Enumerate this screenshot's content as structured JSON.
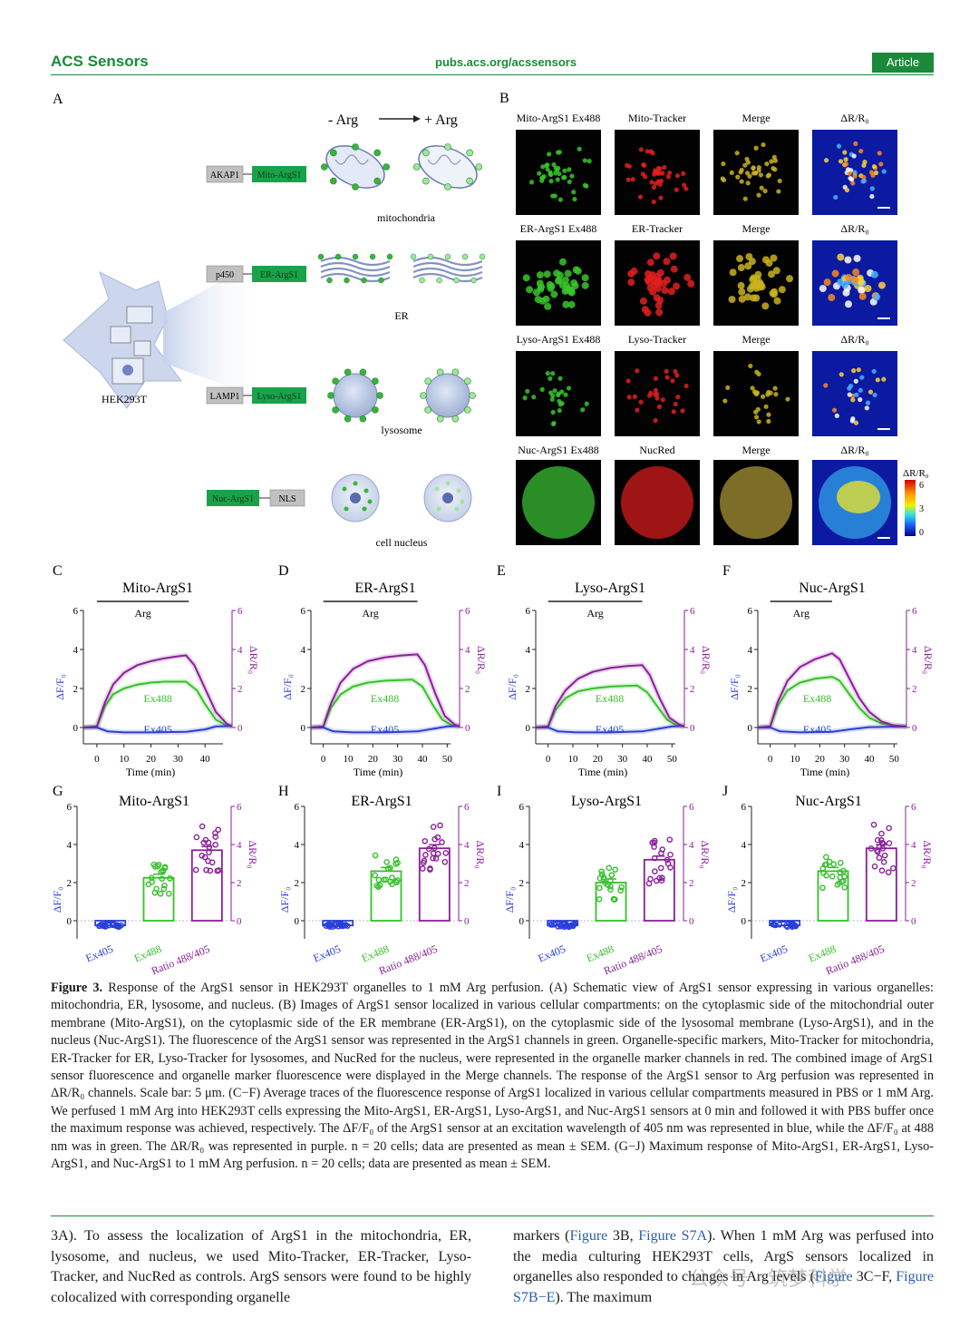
{
  "header": {
    "journal": "ACS Sensors",
    "url": "pubs.acs.org/acssensors",
    "badge": "Article"
  },
  "panel_a": {
    "label": "A",
    "minus_arg": "- Arg",
    "plus_arg": "+ Arg",
    "cell_label": "HEK293T",
    "constructs": [
      {
        "anchor": "AKAP1",
        "sensor": "Mito-ArgS1",
        "organelle": "mitochondria"
      },
      {
        "anchor": "p450",
        "sensor": "ER-ArgS1",
        "organelle": "ER"
      },
      {
        "anchor": "LAMP1",
        "sensor": "Lyso-ArgS1",
        "organelle": "lysosome"
      },
      {
        "anchor": "NLS",
        "sensor": "Nuc-ArgS1",
        "organelle": "cell nucleus"
      }
    ]
  },
  "panel_b": {
    "label": "B",
    "rows": [
      [
        "Mito-ArgS1 Ex488",
        "Mito-Tracker",
        "Merge",
        "ΔR/R₀"
      ],
      [
        "ER-ArgS1 Ex488",
        "ER-Tracker",
        "Merge",
        "ΔR/R₀"
      ],
      [
        "Lyso-ArgS1 Ex488",
        "Lyso-Tracker",
        "Merge",
        "ΔR/R₀"
      ],
      [
        "Nuc-ArgS1 Ex488",
        "NucRed",
        "Merge",
        "ΔR/R₀"
      ]
    ],
    "colorbar": {
      "title": "ΔR/R₀",
      "ticks": [
        "6",
        "3",
        "0"
      ]
    },
    "colors": {
      "green": "#39c42a",
      "red": "#e02020",
      "merge": "#c9b21e"
    }
  },
  "chart_data": [
    {
      "panel": "C",
      "type": "line",
      "title": "Mito-ArgS1",
      "bar_label": "Arg",
      "xlabel": "Time (min)",
      "ylabel_left": "ΔF/F₀",
      "ylabel_right": "ΔR/R₀",
      "x_ticks": [
        0,
        10,
        20,
        30,
        40
      ],
      "xlim": [
        -5,
        50
      ],
      "ylim": [
        0,
        6
      ],
      "y_ticks": [
        0,
        2,
        4,
        6
      ],
      "arg_interval": [
        0,
        34
      ],
      "series": [
        {
          "name": "Ex488",
          "color": "#35c02a",
          "points": [
            [
              -5,
              0
            ],
            [
              0,
              0.05
            ],
            [
              3,
              1.1
            ],
            [
              6,
              1.7
            ],
            [
              10,
              2.0
            ],
            [
              15,
              2.2
            ],
            [
              20,
              2.3
            ],
            [
              25,
              2.35
            ],
            [
              33,
              2.35
            ],
            [
              37,
              1.9
            ],
            [
              40,
              1.2
            ],
            [
              44,
              0.4
            ],
            [
              48,
              0.1
            ],
            [
              50,
              0.05
            ]
          ]
        },
        {
          "name": "Ex405",
          "color": "#2a3fd8",
          "points": [
            [
              -5,
              0
            ],
            [
              0,
              0
            ],
            [
              4,
              -0.2
            ],
            [
              10,
              -0.25
            ],
            [
              20,
              -0.25
            ],
            [
              33,
              -0.22
            ],
            [
              40,
              -0.1
            ],
            [
              44,
              0.05
            ],
            [
              50,
              0.08
            ]
          ]
        },
        {
          "name": "",
          "color": "#8a1f9a",
          "points": [
            [
              -5,
              0
            ],
            [
              0,
              0.05
            ],
            [
              3,
              1.3
            ],
            [
              6,
              2.2
            ],
            [
              10,
              2.8
            ],
            [
              15,
              3.2
            ],
            [
              20,
              3.4
            ],
            [
              25,
              3.55
            ],
            [
              30,
              3.65
            ],
            [
              33,
              3.7
            ],
            [
              36,
              3.2
            ],
            [
              40,
              2.0
            ],
            [
              44,
              0.8
            ],
            [
              48,
              0.2
            ],
            [
              50,
              0.05
            ]
          ]
        }
      ]
    },
    {
      "panel": "D",
      "type": "line",
      "title": "ER-ArgS1",
      "bar_label": "Arg",
      "xlabel": "Time (min)",
      "ylabel_left": "ΔF/F₀",
      "ylabel_right": "ΔR/R₀",
      "x_ticks": [
        0,
        10,
        20,
        30,
        40,
        50
      ],
      "xlim": [
        -5,
        55
      ],
      "ylim": [
        0,
        6
      ],
      "y_ticks": [
        0,
        2,
        4,
        6
      ],
      "arg_interval": [
        0,
        38
      ],
      "series": [
        {
          "name": "Ex488",
          "color": "#35c02a",
          "points": [
            [
              -5,
              0
            ],
            [
              0,
              0.05
            ],
            [
              3,
              1.0
            ],
            [
              7,
              1.7
            ],
            [
              12,
              2.1
            ],
            [
              18,
              2.3
            ],
            [
              25,
              2.4
            ],
            [
              36,
              2.45
            ],
            [
              40,
              2.1
            ],
            [
              44,
              1.2
            ],
            [
              48,
              0.4
            ],
            [
              52,
              0.1
            ],
            [
              55,
              0.05
            ]
          ]
        },
        {
          "name": "Ex405",
          "color": "#2a3fd8",
          "points": [
            [
              -5,
              0
            ],
            [
              0,
              0
            ],
            [
              4,
              -0.2
            ],
            [
              12,
              -0.25
            ],
            [
              25,
              -0.25
            ],
            [
              38,
              -0.2
            ],
            [
              45,
              -0.05
            ],
            [
              50,
              0.05
            ],
            [
              55,
              0.08
            ]
          ]
        },
        {
          "name": "",
          "color": "#8a1f9a",
          "points": [
            [
              -5,
              0
            ],
            [
              0,
              0.05
            ],
            [
              3,
              1.2
            ],
            [
              7,
              2.3
            ],
            [
              12,
              3.0
            ],
            [
              18,
              3.4
            ],
            [
              25,
              3.6
            ],
            [
              32,
              3.7
            ],
            [
              38,
              3.75
            ],
            [
              41,
              3.2
            ],
            [
              45,
              1.8
            ],
            [
              49,
              0.6
            ],
            [
              53,
              0.15
            ],
            [
              55,
              0.05
            ]
          ]
        }
      ]
    },
    {
      "panel": "E",
      "type": "line",
      "title": "Lyso-ArgS1",
      "bar_label": "Arg",
      "xlabel": "Time (min)",
      "ylabel_left": "ΔF/F₀",
      "ylabel_right": "ΔR/R₀",
      "x_ticks": [
        0,
        10,
        20,
        30,
        40,
        50
      ],
      "xlim": [
        -5,
        55
      ],
      "ylim": [
        0,
        6
      ],
      "y_ticks": [
        0,
        2,
        4,
        6
      ],
      "arg_interval": [
        0,
        38
      ],
      "series": [
        {
          "name": "Ex488",
          "color": "#35c02a",
          "points": [
            [
              -5,
              0
            ],
            [
              0,
              0.05
            ],
            [
              3,
              0.9
            ],
            [
              7,
              1.5
            ],
            [
              12,
              1.85
            ],
            [
              18,
              2.0
            ],
            [
              25,
              2.1
            ],
            [
              36,
              2.15
            ],
            [
              40,
              1.8
            ],
            [
              44,
              1.1
            ],
            [
              48,
              0.4
            ],
            [
              52,
              0.1
            ],
            [
              55,
              0.05
            ]
          ]
        },
        {
          "name": "Ex405",
          "color": "#2a3fd8",
          "points": [
            [
              -5,
              0
            ],
            [
              0,
              0
            ],
            [
              4,
              -0.2
            ],
            [
              12,
              -0.25
            ],
            [
              25,
              -0.25
            ],
            [
              38,
              -0.2
            ],
            [
              45,
              -0.05
            ],
            [
              50,
              0.05
            ],
            [
              55,
              0.08
            ]
          ]
        },
        {
          "name": "",
          "color": "#8a1f9a",
          "points": [
            [
              -5,
              0
            ],
            [
              0,
              0.05
            ],
            [
              3,
              1.1
            ],
            [
              7,
              1.9
            ],
            [
              12,
              2.5
            ],
            [
              18,
              2.85
            ],
            [
              25,
              3.05
            ],
            [
              32,
              3.15
            ],
            [
              38,
              3.2
            ],
            [
              41,
              2.7
            ],
            [
              45,
              1.5
            ],
            [
              49,
              0.5
            ],
            [
              53,
              0.15
            ],
            [
              55,
              0.05
            ]
          ]
        }
      ]
    },
    {
      "panel": "F",
      "type": "line",
      "title": "Nuc-ArgS1",
      "bar_label": "Arg",
      "xlabel": "Time (min)",
      "ylabel_left": "ΔF/F₀",
      "ylabel_right": "ΔR/R₀",
      "x_ticks": [
        0,
        10,
        20,
        30,
        40,
        50
      ],
      "xlim": [
        -5,
        55
      ],
      "ylim": [
        0,
        6
      ],
      "y_ticks": [
        0,
        2,
        4,
        6
      ],
      "arg_interval": [
        0,
        25
      ],
      "series": [
        {
          "name": "Ex488",
          "color": "#35c02a",
          "points": [
            [
              -5,
              0
            ],
            [
              0,
              0.05
            ],
            [
              3,
              1.1
            ],
            [
              7,
              1.9
            ],
            [
              12,
              2.3
            ],
            [
              18,
              2.5
            ],
            [
              25,
              2.6
            ],
            [
              28,
              2.4
            ],
            [
              32,
              1.7
            ],
            [
              36,
              1.0
            ],
            [
              40,
              0.5
            ],
            [
              45,
              0.2
            ],
            [
              50,
              0.1
            ],
            [
              55,
              0.05
            ]
          ]
        },
        {
          "name": "Ex405",
          "color": "#2a3fd8",
          "points": [
            [
              -5,
              0
            ],
            [
              0,
              0
            ],
            [
              4,
              -0.2
            ],
            [
              12,
              -0.25
            ],
            [
              25,
              -0.22
            ],
            [
              32,
              -0.1
            ],
            [
              40,
              0.02
            ],
            [
              55,
              0.05
            ]
          ]
        },
        {
          "name": "",
          "color": "#8a1f9a",
          "points": [
            [
              -5,
              0
            ],
            [
              0,
              0.05
            ],
            [
              3,
              1.3
            ],
            [
              7,
              2.4
            ],
            [
              12,
              3.1
            ],
            [
              18,
              3.5
            ],
            [
              25,
              3.8
            ],
            [
              28,
              3.5
            ],
            [
              32,
              2.5
            ],
            [
              36,
              1.5
            ],
            [
              40,
              0.8
            ],
            [
              45,
              0.3
            ],
            [
              50,
              0.1
            ],
            [
              55,
              0.05
            ]
          ]
        }
      ]
    },
    {
      "panel": "G",
      "type": "bar",
      "title": "Mito-ArgS1",
      "categories": [
        "Ex405",
        "Ex488",
        "Ratio 488/405"
      ],
      "values": [
        -0.25,
        2.25,
        3.7
      ],
      "ylim": [
        0,
        6
      ],
      "y_ticks": [
        0,
        2,
        4,
        6
      ],
      "ylabel_left": "ΔF/F₀",
      "ylabel_right": "ΔR/R₀",
      "colors": [
        "#2a3fd8",
        "#35c02a",
        "#8a1f9a"
      ]
    },
    {
      "panel": "H",
      "type": "bar",
      "title": "ER-ArgS1",
      "categories": [
        "Ex405",
        "Ex488",
        "Ratio 488/405"
      ],
      "values": [
        -0.25,
        2.6,
        3.8
      ],
      "ylim": [
        0,
        6
      ],
      "y_ticks": [
        0,
        2,
        4,
        6
      ],
      "ylabel_left": "ΔF/F₀",
      "ylabel_right": "ΔR/R₀",
      "colors": [
        "#2a3fd8",
        "#35c02a",
        "#8a1f9a"
      ]
    },
    {
      "panel": "I",
      "type": "bar",
      "title": "Lyso-ArgS1",
      "categories": [
        "Ex405",
        "Ex488",
        "Ratio 488/405"
      ],
      "values": [
        -0.25,
        2.0,
        3.2
      ],
      "ylim": [
        0,
        6
      ],
      "y_ticks": [
        0,
        2,
        4,
        6
      ],
      "ylabel_left": "ΔF/F₀",
      "ylabel_right": "ΔR/R₀",
      "colors": [
        "#2a3fd8",
        "#35c02a",
        "#8a1f9a"
      ]
    },
    {
      "panel": "J",
      "type": "bar",
      "title": "Nuc-ArgS1",
      "categories": [
        "Ex405",
        "Ex488",
        "Ratio 488/405"
      ],
      "values": [
        -0.25,
        2.6,
        3.8
      ],
      "ylim": [
        0,
        6
      ],
      "y_ticks": [
        0,
        2,
        4,
        6
      ],
      "ylabel_left": "ΔF/F₀",
      "ylabel_right": "ΔR/R₀",
      "colors": [
        "#2a3fd8",
        "#35c02a",
        "#8a1f9a"
      ]
    }
  ],
  "caption": {
    "label": "Figure 3.",
    "text": "Response of the ArgS1 sensor in HEK293T organelles to 1 mM Arg perfusion. (A) Schematic view of ArgS1 sensor expressing in various organelles: mitochondria, ER, lysosome, and nucleus. (B) Images of ArgS1 sensor localized in various cellular compartments: on the cytoplasmic side of the mitochondrial outer membrane (Mito-ArgS1), on the cytoplasmic side of the ER membrane (ER-ArgS1), on the cytoplasmic side of the lysosomal membrane (Lyso-ArgS1), and in the nucleus (Nuc-ArgS1). The fluorescence of the ArgS1 sensor was represented in the ArgS1 channels in green. Organelle-specific markers, Mito-Tracker for mitochondria, ER-Tracker for ER, Lyso-Tracker for lysosomes, and NucRed for the nucleus, were represented in the organelle marker channels in red. The combined image of ArgS1 sensor fluorescence and organelle marker fluorescence were displayed in the Merge channels. The response of the ArgS1 sensor to Arg perfusion was represented in ΔR/R₀ channels. Scale bar: 5 μm. (C−F) Average traces of the fluorescence response of ArgS1 localized in various cellular compartments measured in PBS or 1 mM Arg. We perfused 1 mM Arg into HEK293T cells expressing the Mito-ArgS1, ER-ArgS1, Lyso-ArgS1, and Nuc-ArgS1 sensors at 0 min and followed it with PBS buffer once the maximum response was achieved, respectively. The ΔF/F₀ of the ArgS1 sensor at an excitation wavelength of 405 nm was represented in blue, while the ΔF/F₀ at 488 nm was in green. The ΔR/R₀ was represented in purple. n = 20 cells; data are presented as mean ± SEM. (G−J) Maximum response of Mito-ArgS1, ER-ArgS1, Lyso-ArgS1, and Nuc-ArgS1 to 1 mM Arg perfusion. n = 20 cells; data are presented as mean ± SEM."
  },
  "body": {
    "left": "3A). To assess the localization of ArgS1 in the mitochondria, ER, lysosome, and nucleus, we used Mito-Tracker, ER-Tracker, Lyso-Tracker, and NucRed as controls. ArgS sensors were found to be highly colocalized with corresponding organelle",
    "right_parts": [
      "markers (",
      "Figure",
      " 3B, ",
      "Figure",
      " ",
      "S7A",
      "). When 1 mM Arg was perfused into the media culturing HEK293T cells, ArgS sensors localized in organelles also responded to changes in Arg levels (",
      "Figure",
      " 3C−F, ",
      "Figure",
      " ",
      "S7B−E",
      "). The maximum"
    ]
  },
  "watermark": "公众号 · 筑梦科学"
}
